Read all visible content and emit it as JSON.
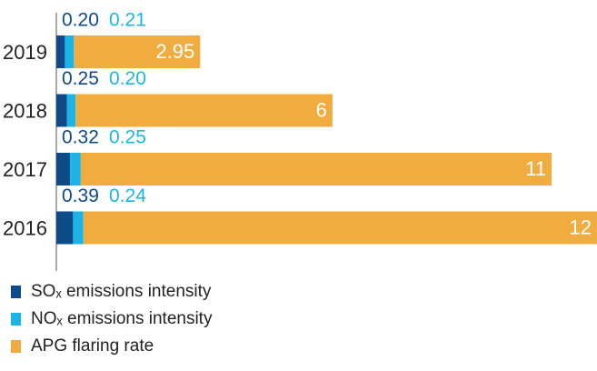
{
  "chart_data": {
    "type": "stacked-bar-horizontal",
    "categories": [
      "2019",
      "2018",
      "2017",
      "2016"
    ],
    "series": [
      {
        "name": "SOₓ emissions intensity",
        "color": "#0d4a8a",
        "values": [
          0.2,
          0.25,
          0.32,
          0.39
        ],
        "value_labels": [
          "0.20",
          "0.25",
          "0.32",
          "0.39"
        ]
      },
      {
        "name": "NOₓ emissions intensity",
        "color": "#1ab4e8",
        "values": [
          0.21,
          0.2,
          0.25,
          0.24
        ],
        "value_labels": [
          "0.21",
          "0.20",
          "0.25",
          "0.24"
        ]
      },
      {
        "name": "APG flaring rate",
        "color": "#f0ac3e",
        "values": [
          2.95,
          6,
          11,
          12
        ]
      }
    ]
  }
}
